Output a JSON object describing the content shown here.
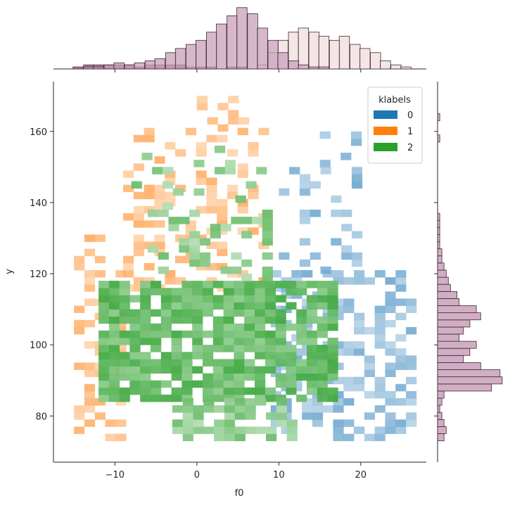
{
  "chart_data": {
    "type": "heatmap",
    "subtype": "jointplot-2d-histogram",
    "xlabel": "f0",
    "ylabel": "y",
    "xlim": [
      -17.5,
      28
    ],
    "ylim": [
      67,
      174
    ],
    "x_ticks": [
      "−10",
      "0",
      "10",
      "20"
    ],
    "x_tick_values": [
      -10,
      0,
      10,
      20
    ],
    "y_ticks": [
      "80",
      "100",
      "120",
      "140",
      "160"
    ],
    "y_tick_values": [
      80,
      100,
      120,
      140,
      160
    ],
    "bin_width_x": 1.27,
    "bin_width_y": 2.0,
    "legend": {
      "title": "klabels",
      "placement": "top-right",
      "entries": [
        {
          "label": "0",
          "color": "#1f77b4"
        },
        {
          "label": "1",
          "color": "#ff7f0e"
        },
        {
          "label": "2",
          "color": "#2ca02c"
        }
      ]
    },
    "series": [
      {
        "label": "0",
        "color": "#1f77b4",
        "regions": [
          {
            "x": [
              9,
              26
            ],
            "y": [
              73,
              120
            ],
            "density": 0.45
          },
          {
            "x": [
              10,
              20
            ],
            "y": [
              120,
              150
            ],
            "density": 0.2
          },
          {
            "x": [
              15,
              19
            ],
            "y": [
              150,
              160
            ],
            "density": 0.2
          }
        ]
      },
      {
        "label": "1",
        "color": "#ff7f0e",
        "regions": [
          {
            "x": [
              -15,
              -9
            ],
            "y": [
              73,
              130
            ],
            "density": 0.35
          },
          {
            "x": [
              -9,
              8
            ],
            "y": [
              115,
              160
            ],
            "density": 0.3
          },
          {
            "x": [
              0,
              6
            ],
            "y": [
              160,
              170
            ],
            "density": 0.3
          }
        ]
      },
      {
        "label": "2",
        "color": "#2ca02c",
        "regions": [
          {
            "x": [
              -12,
              16
            ],
            "y": [
              84,
              118
            ],
            "density": 0.8
          },
          {
            "x": [
              -3,
              12
            ],
            "y": [
              73,
              84
            ],
            "density": 0.6
          },
          {
            "x": [
              -6,
              8
            ],
            "y": [
              118,
              138
            ],
            "density": 0.35
          },
          {
            "x": [
              -8,
              8
            ],
            "y": [
              138,
              155
            ],
            "density": 0.12
          }
        ]
      }
    ],
    "top_marginal": {
      "bin_centers": [
        -14.5,
        -13.2,
        -12,
        -10.7,
        -9.5,
        -8.2,
        -7,
        -5.7,
        -4.5,
        -3.2,
        -2,
        -0.7,
        0.5,
        1.8,
        3,
        4.3,
        5.5,
        6.8,
        8,
        9.3,
        10.5,
        11.8,
        13,
        14.3,
        15.5,
        16.8,
        18,
        19.3,
        20.5,
        21.8,
        23,
        24.3,
        25.5
      ],
      "cluster2_counts": [
        0,
        1,
        1,
        2,
        3,
        2,
        3,
        4,
        5,
        8,
        10,
        12,
        14,
        18,
        22,
        26,
        30,
        27,
        20,
        14,
        8,
        4,
        2,
        1,
        1,
        0,
        0,
        0,
        0,
        0,
        0,
        0,
        0
      ],
      "cluster1_counts": [
        1,
        2,
        2,
        2,
        2,
        2,
        1,
        2,
        2,
        2,
        2,
        1,
        1,
        1,
        0,
        1,
        1,
        0,
        0,
        0,
        0,
        0,
        0,
        0,
        0,
        0,
        0,
        0,
        0,
        0,
        0,
        0,
        0
      ],
      "cluster0_counts": [
        0,
        0,
        0,
        0,
        0,
        0,
        0,
        0,
        0,
        0,
        0,
        0,
        0,
        0,
        0,
        0,
        0,
        0,
        2,
        8,
        14,
        18,
        20,
        18,
        16,
        14,
        16,
        12,
        10,
        8,
        4,
        2,
        1
      ]
    },
    "right_marginal": {
      "bin_centers": [
        74,
        76,
        78,
        80,
        82,
        84,
        86,
        88,
        90,
        92,
        94,
        96,
        98,
        100,
        102,
        104,
        106,
        108,
        110,
        112,
        114,
        116,
        118,
        120,
        122,
        124,
        126,
        128,
        130,
        132,
        134,
        136,
        138,
        140,
        142,
        144,
        146,
        148,
        150,
        152,
        154,
        156,
        158,
        160,
        162,
        164
      ],
      "counts": [
        3,
        4,
        3,
        2,
        1,
        2,
        3,
        25,
        30,
        29,
        20,
        12,
        15,
        18,
        10,
        12,
        15,
        20,
        18,
        10,
        9,
        6,
        5,
        4,
        3,
        2,
        2,
        1,
        1,
        1,
        1,
        1,
        0,
        0,
        0,
        0,
        0,
        0,
        0,
        0,
        0,
        0,
        1,
        0,
        0,
        1
      ]
    }
  }
}
